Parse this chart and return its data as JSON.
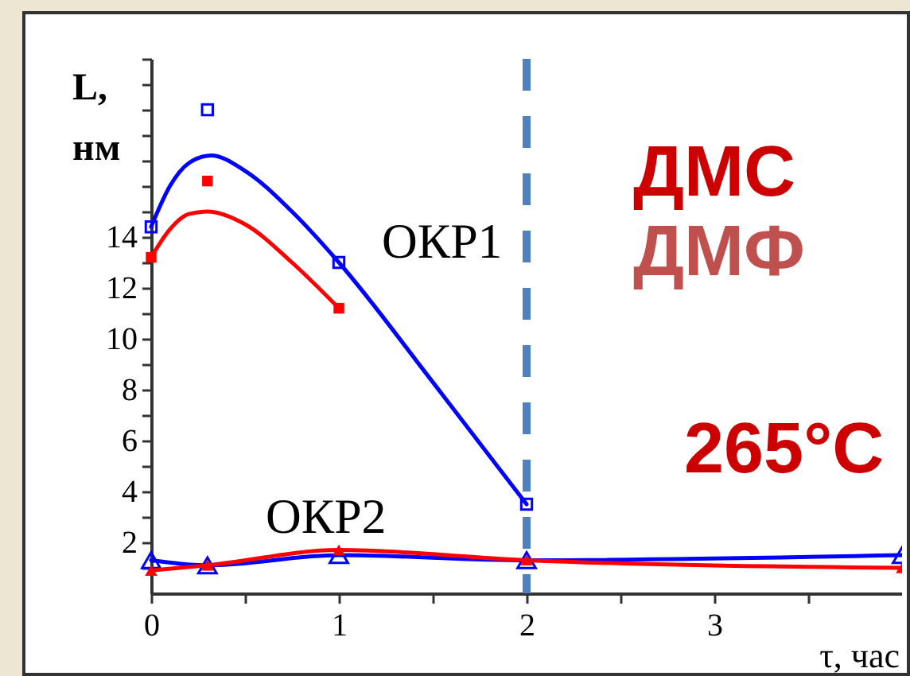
{
  "chart_data": {
    "type": "line",
    "xlabel": "τ, час",
    "ylabel": "L, нм",
    "xlim": [
      0,
      4
    ],
    "ylim": [
      0,
      21
    ],
    "xticks": [
      0,
      1,
      2,
      3,
      {
        "value": 0.5,
        "label": null
      },
      {
        "value": 1.5,
        "label": null
      },
      {
        "value": 2.5,
        "label": null
      },
      {
        "value": 3.5,
        "label": null
      }
    ],
    "yticks": [
      2,
      4,
      6,
      8,
      10,
      12,
      14,
      {
        "value": 16,
        "label": null
      },
      {
        "value": 18,
        "label": null
      },
      {
        "value": 20,
        "label": null
      },
      {
        "value": 1,
        "label": null
      },
      {
        "value": 3,
        "label": null
      },
      {
        "value": 5,
        "label": null
      },
      {
        "value": 7,
        "label": null
      },
      {
        "value": 9,
        "label": null
      },
      {
        "value": 11,
        "label": null
      },
      {
        "value": 13,
        "label": null
      },
      {
        "value": 15,
        "label": null
      },
      {
        "value": 17,
        "label": null
      },
      {
        "value": 19,
        "label": null
      },
      {
        "value": 21,
        "label": null
      }
    ],
    "grid": false,
    "series": [
      {
        "type": "scatter",
        "marker": "square",
        "color": "#0000ff",
        "x": [
          0,
          0.3,
          1,
          2
        ],
        "values": [
          14.4,
          19.0,
          13.0,
          3.5
        ]
      },
      {
        "type": "scatter",
        "marker": "square",
        "color": "#ff0000",
        "x": [
          0,
          0.3,
          1
        ],
        "values": [
          13.2,
          16.2,
          11.2
        ]
      },
      {
        "type": "line",
        "marker": "none",
        "color": "#0000ff",
        "x": [
          0,
          0.1,
          0.2,
          0.32,
          0.5,
          0.75,
          1,
          1.5,
          2
        ],
        "values": [
          14.4,
          16.0,
          16.9,
          17.2,
          16.6,
          15.0,
          13.0,
          8.3,
          3.5
        ]
      },
      {
        "type": "line",
        "marker": "none",
        "color": "#ff0000",
        "x": [
          0,
          0.1,
          0.2,
          0.3,
          0.5,
          0.75,
          1
        ],
        "values": [
          13.2,
          14.3,
          14.9,
          15.0,
          14.5,
          13.0,
          11.2
        ]
      },
      {
        "type": "line",
        "marker": "triangle",
        "color": "#0000ff",
        "x": [
          0,
          0.3,
          1,
          2,
          4
        ],
        "values": [
          1.3,
          1.1,
          1.5,
          1.3,
          1.5
        ]
      },
      {
        "type": "line",
        "marker": "triangle",
        "color": "#ff0000",
        "x": [
          0,
          0.3,
          1,
          2,
          4
        ],
        "values": [
          0.9,
          1.1,
          1.7,
          1.3,
          1.0
        ]
      }
    ],
    "ref_lines": [
      {
        "axis": "x",
        "value": 2,
        "color": "#4f81bd",
        "line_style": "dashed"
      }
    ],
    "annotations": [
      "ОКР1",
      "ОКР2",
      "ДМС",
      "ДМФ",
      "265°C"
    ]
  }
}
